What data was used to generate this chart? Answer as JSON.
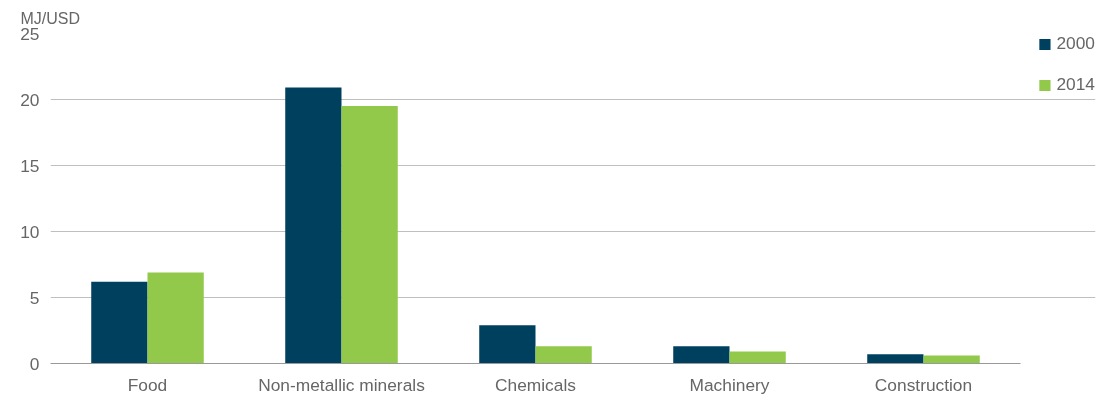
{
  "chart_data": {
    "type": "bar",
    "ylabel": "MJ/USD",
    "categories": [
      "Food",
      "Non-metallic minerals",
      "Chemicals",
      "Machinery",
      "Construction"
    ],
    "series": [
      {
        "name": "2000",
        "color": "#00405f",
        "values": [
          6.2,
          20.9,
          2.9,
          1.3,
          0.7
        ]
      },
      {
        "name": "2014",
        "color": "#92c94a",
        "values": [
          6.9,
          19.5,
          1.3,
          0.9,
          0.6
        ]
      }
    ],
    "ylim": [
      0,
      25
    ],
    "yticks": [
      0,
      5,
      10,
      15,
      20,
      25
    ],
    "grid": "y",
    "legend": "top right"
  }
}
